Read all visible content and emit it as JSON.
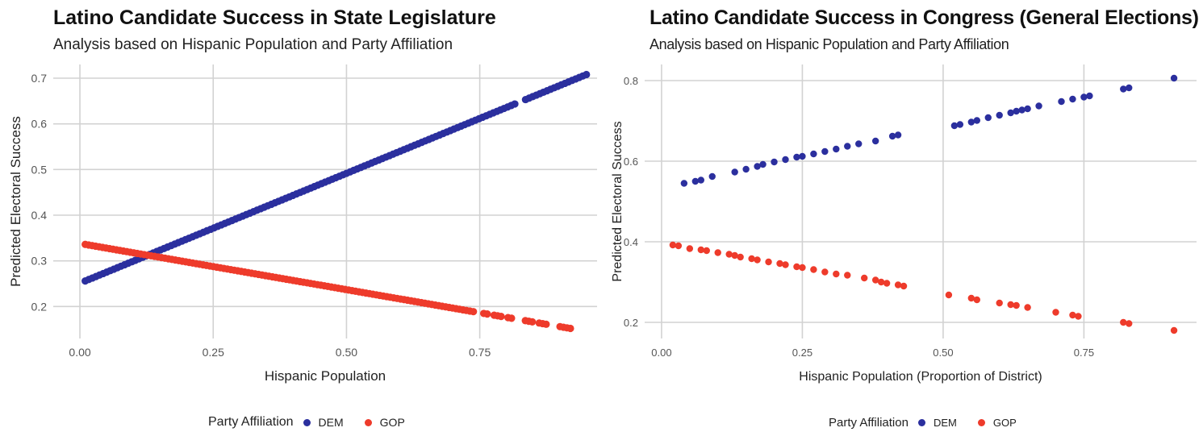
{
  "charts": {
    "left": {
      "title": "Latino Candidate Success in State Legislature",
      "subtitle": "Analysis based on Hispanic Population and Party Affiliation",
      "xlabel": "Hispanic Population",
      "ylabel": "Predicted Electoral Success",
      "legend": {
        "title": "Party Affiliation",
        "items": [
          "DEM",
          "GOP"
        ]
      }
    },
    "right": {
      "title": "Latino Candidate Success in Congress (General Elections)",
      "subtitle": "Analysis based on Hispanic Population and Party Affiliation",
      "xlabel": "Hispanic Population (Proportion of District)",
      "ylabel": "Predicted Electoral Success",
      "legend": {
        "title": "Party Affiliation",
        "items": [
          "DEM",
          "GOP"
        ]
      }
    }
  },
  "colors": {
    "dem": "#2b2f9e",
    "gop": "#ee3b2b",
    "grid": "#d2d2d2",
    "tick": "#555555"
  },
  "chart_data": [
    {
      "type": "scatter",
      "title": "Latino Candidate Success in State Legislature",
      "subtitle": "Analysis based on Hispanic Population and Party Affiliation",
      "xlabel": "Hispanic Population",
      "ylabel": "Predicted Electoral Success",
      "xlim": [
        -0.05,
        0.97
      ],
      "ylim": [
        0.13,
        0.73
      ],
      "xticks": [
        0.0,
        0.25,
        0.5,
        0.75
      ],
      "xtick_labels": [
        "0.00",
        "0.25",
        "0.50",
        "0.75"
      ],
      "yticks": [
        0.2,
        0.3,
        0.4,
        0.5,
        0.6,
        0.7
      ],
      "ytick_labels": [
        "0.2",
        "0.3",
        "0.4",
        "0.5",
        "0.6",
        "0.7"
      ],
      "grid": true,
      "legend_position": "bottom",
      "series": [
        {
          "name": "DEM",
          "color": "#2b2f9e",
          "x_start": 0.01,
          "x_end": 0.95,
          "y_start": 0.256,
          "y_end": 0.708,
          "x_gaps": [
            [
              0.82,
              0.83
            ],
            [
              0.87,
              0.875
            ]
          ]
        },
        {
          "name": "GOP",
          "color": "#ee3b2b",
          "x_start": 0.01,
          "x_end": 0.92,
          "y_start": 0.336,
          "y_end": 0.152,
          "x_gaps": [
            [
              0.74,
              0.755
            ],
            [
              0.77,
              0.775
            ],
            [
              0.79,
              0.8
            ],
            [
              0.81,
              0.83
            ],
            [
              0.85,
              0.86
            ],
            [
              0.88,
              0.9
            ]
          ]
        }
      ]
    },
    {
      "type": "scatter",
      "title": "Latino Candidate Success in Congress (General Elections)",
      "subtitle": "Analysis based on Hispanic Population and Party Affiliation",
      "xlabel": "Hispanic Population (Proportion of District)",
      "ylabel": "Predicted Electoral Success",
      "xlim": [
        -0.03,
        0.95
      ],
      "ylim": [
        0.16,
        0.84
      ],
      "xticks": [
        0.0,
        0.25,
        0.5,
        0.75
      ],
      "xtick_labels": [
        "0.00",
        "0.25",
        "0.50",
        "0.75"
      ],
      "yticks": [
        0.2,
        0.4,
        0.6,
        0.8
      ],
      "ytick_labels": [
        "0.2",
        "0.4",
        "0.6",
        "0.8"
      ],
      "grid": true,
      "legend_position": "bottom",
      "series": [
        {
          "name": "DEM",
          "color": "#2b2f9e",
          "x": [
            0.04,
            0.06,
            0.07,
            0.09,
            0.13,
            0.15,
            0.17,
            0.18,
            0.2,
            0.22,
            0.24,
            0.25,
            0.27,
            0.29,
            0.31,
            0.33,
            0.35,
            0.38,
            0.41,
            0.42,
            0.52,
            0.53,
            0.55,
            0.56,
            0.58,
            0.6,
            0.62,
            0.63,
            0.64,
            0.65,
            0.67,
            0.71,
            0.73,
            0.75,
            0.76,
            0.82,
            0.83,
            0.91
          ],
          "y": [
            0.545,
            0.55,
            0.553,
            0.562,
            0.573,
            0.58,
            0.587,
            0.592,
            0.598,
            0.604,
            0.61,
            0.612,
            0.618,
            0.624,
            0.63,
            0.637,
            0.643,
            0.65,
            0.662,
            0.665,
            0.688,
            0.691,
            0.697,
            0.701,
            0.708,
            0.714,
            0.72,
            0.724,
            0.727,
            0.73,
            0.737,
            0.748,
            0.754,
            0.759,
            0.762,
            0.779,
            0.782,
            0.806
          ]
        },
        {
          "name": "GOP",
          "color": "#ee3b2b",
          "x": [
            0.02,
            0.03,
            0.05,
            0.07,
            0.08,
            0.1,
            0.12,
            0.13,
            0.14,
            0.16,
            0.17,
            0.19,
            0.21,
            0.22,
            0.24,
            0.25,
            0.27,
            0.29,
            0.31,
            0.33,
            0.36,
            0.38,
            0.39,
            0.4,
            0.42,
            0.43,
            0.51,
            0.55,
            0.56,
            0.6,
            0.62,
            0.63,
            0.65,
            0.7,
            0.73,
            0.74,
            0.82,
            0.83,
            0.91
          ],
          "y": [
            0.392,
            0.39,
            0.383,
            0.38,
            0.378,
            0.373,
            0.369,
            0.366,
            0.362,
            0.358,
            0.355,
            0.35,
            0.346,
            0.343,
            0.338,
            0.336,
            0.331,
            0.325,
            0.32,
            0.317,
            0.31,
            0.305,
            0.3,
            0.297,
            0.293,
            0.29,
            0.268,
            0.26,
            0.256,
            0.248,
            0.244,
            0.242,
            0.237,
            0.225,
            0.218,
            0.215,
            0.2,
            0.197,
            0.18
          ]
        }
      ]
    }
  ]
}
